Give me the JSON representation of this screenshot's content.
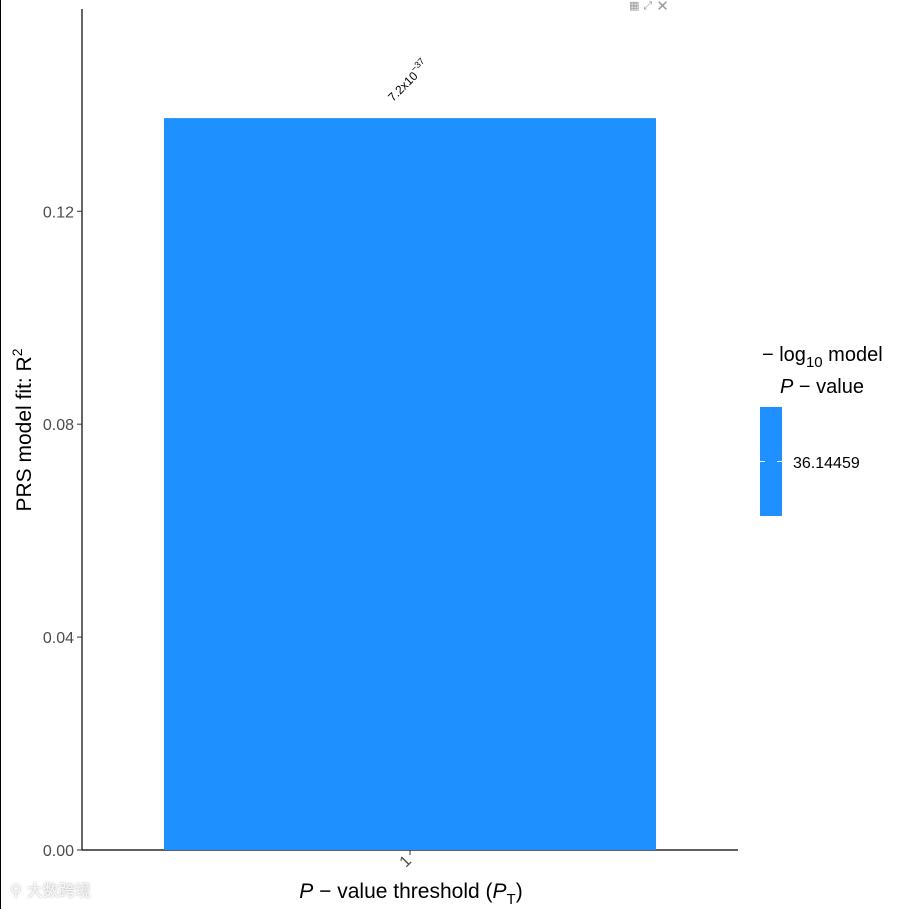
{
  "toolbar": {
    "grid_icon": "grid-icon",
    "expand_icon": "expand-icon",
    "close_icon": "close-icon"
  },
  "colors": {
    "bar": "#1e90ff",
    "axis": "#000000",
    "tick_text": "#4d4d4d"
  },
  "watermark": {
    "text": "大数跨境"
  },
  "chart_data": {
    "type": "bar",
    "categories": [
      "1"
    ],
    "values": [
      0.1375
    ],
    "bar_labels": [
      {
        "base": "7.2x10",
        "exp": "−37"
      }
    ],
    "ylim": [
      0,
      0.158
    ],
    "yticks": [
      0.0,
      0.04,
      0.08,
      0.12
    ],
    "ytick_labels": [
      "0.00",
      "0.04",
      "0.08",
      "0.12"
    ],
    "ylabel": {
      "text": "PRS model fit:  R",
      "sup": "2"
    },
    "xlabel": {
      "p": "P",
      "mid": " − value threshold (",
      "pt": "P",
      "sub": "T",
      "end": ")"
    },
    "legend": {
      "position": "right",
      "title_line1": {
        "pre": "− log",
        "sub": "10",
        "post": " model"
      },
      "title_line2": {
        "p": "P",
        "post": " − value"
      },
      "color_value": 36.14459,
      "tick_label": "36.14459"
    }
  }
}
